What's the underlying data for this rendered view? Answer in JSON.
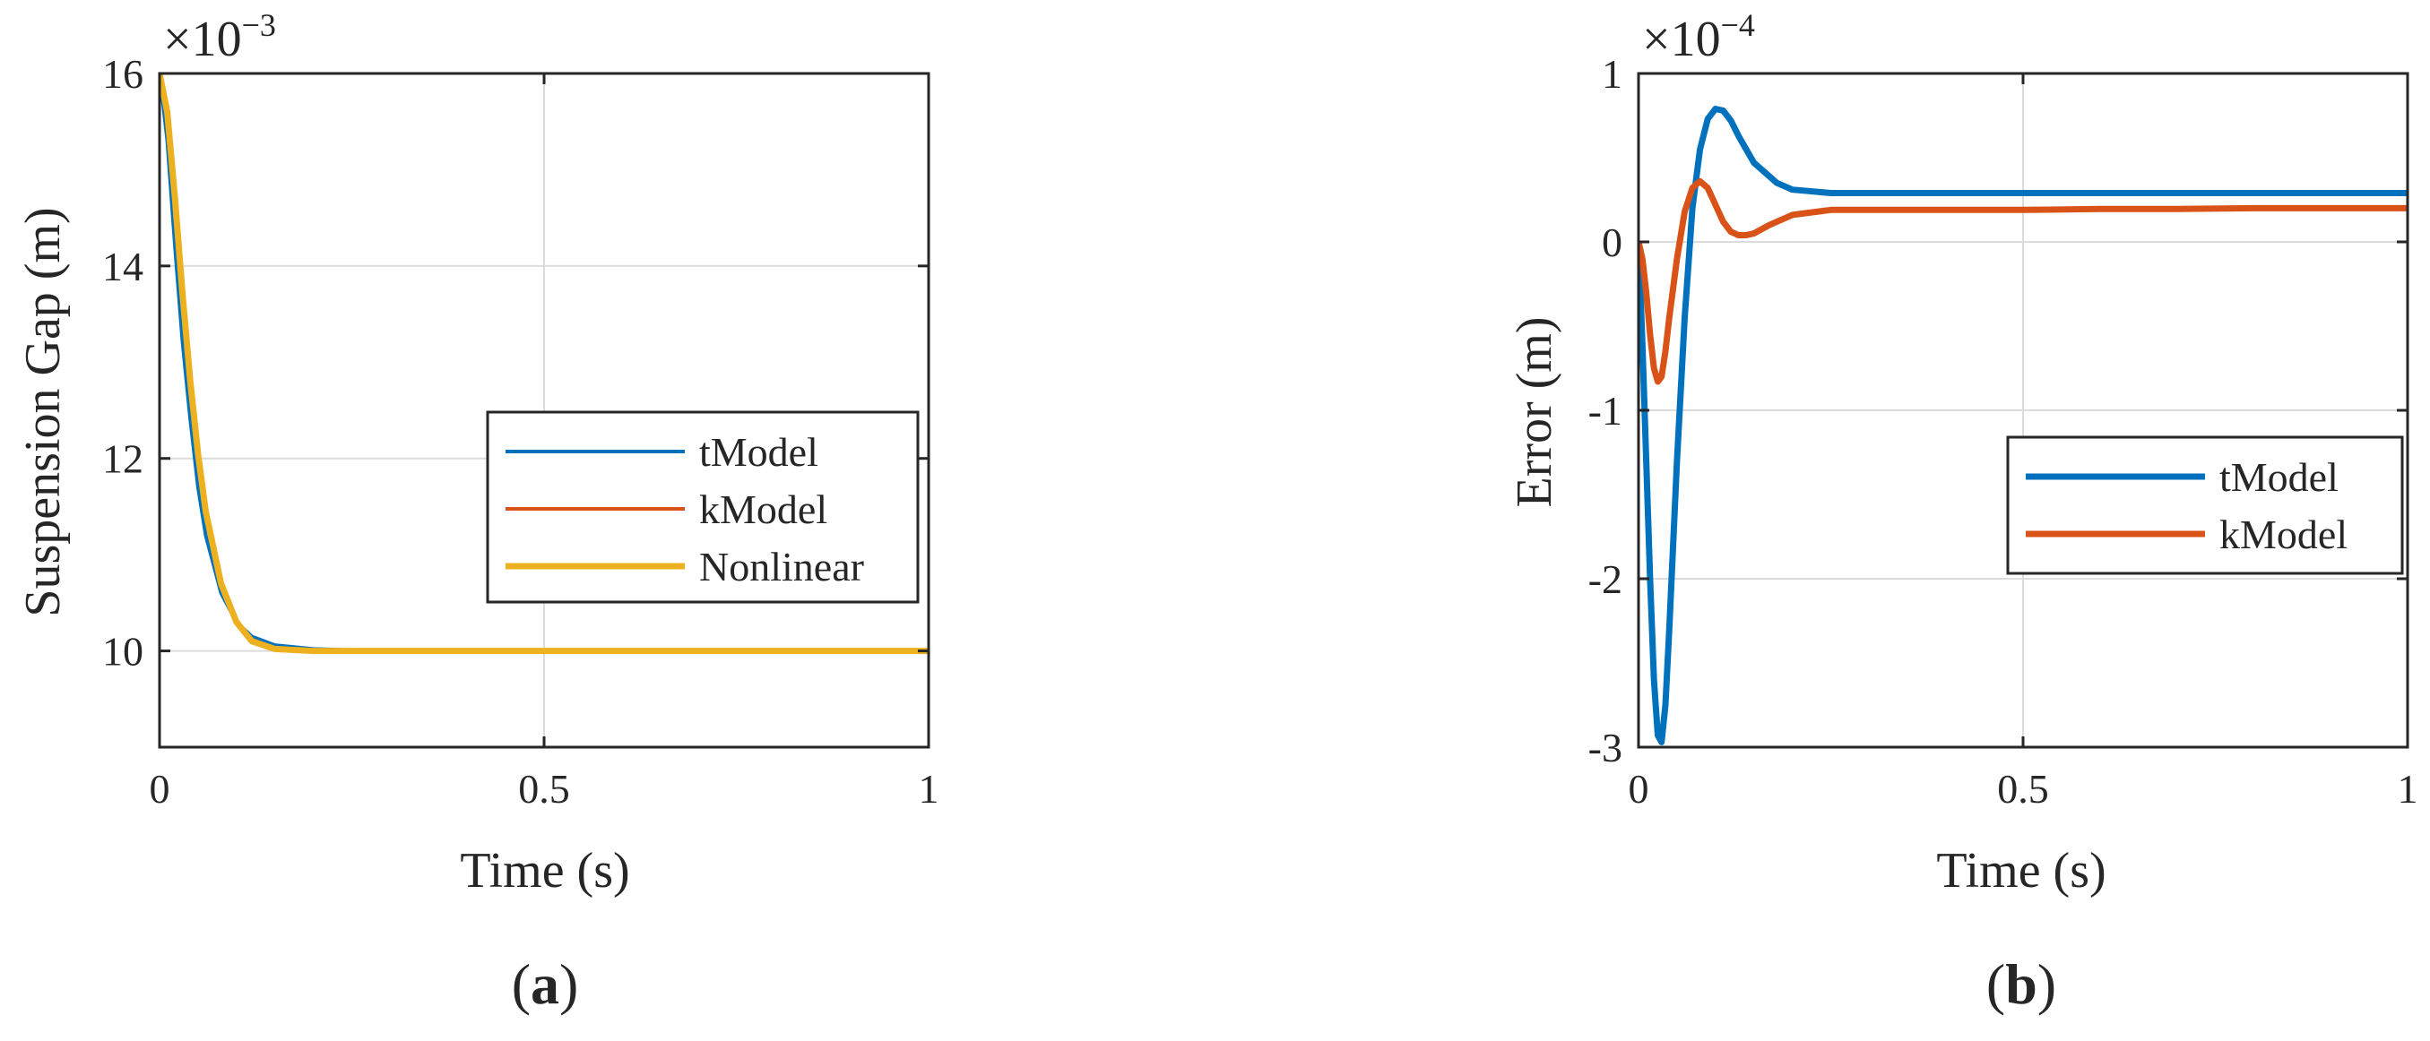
{
  "chart_data": [
    {
      "type": "line",
      "caption": "(a)",
      "caption_letter": "a",
      "xlabel": "Time (s)",
      "ylabel": "Suspension Gap (m)",
      "exponent": "×10",
      "exponent_power": "−3",
      "xlim": [
        0,
        1
      ],
      "ylim": [
        9,
        16
      ],
      "xticks": [
        "0",
        "0.5",
        "1"
      ],
      "yticks": [
        "10",
        "12",
        "14",
        "16"
      ],
      "grid": true,
      "legend_position": "center-right",
      "series": [
        {
          "name": "tModel",
          "color": "#0072BD",
          "x": [
            0,
            0.01,
            0.02,
            0.03,
            0.04,
            0.05,
            0.06,
            0.08,
            0.1,
            0.12,
            0.15,
            0.2,
            0.25,
            0.3,
            0.4,
            0.5,
            0.6,
            0.7,
            0.8,
            0.9,
            1.0
          ],
          "y": [
            16,
            15.3,
            14.2,
            13.2,
            12.4,
            11.7,
            11.2,
            10.6,
            10.3,
            10.15,
            10.06,
            10.02,
            10.01,
            10.01,
            10.01,
            10.01,
            10.01,
            10.01,
            10.01,
            10.01,
            10.01
          ]
        },
        {
          "name": "kModel",
          "color": "#D95319",
          "x": [
            0,
            0.01,
            0.02,
            0.03,
            0.04,
            0.05,
            0.06,
            0.08,
            0.1,
            0.12,
            0.15,
            0.2,
            0.25,
            0.3,
            0.4,
            0.5,
            0.6,
            0.7,
            0.8,
            0.9,
            1.0
          ],
          "y": [
            16,
            15.5,
            14.6,
            13.6,
            12.7,
            12.0,
            11.4,
            10.7,
            10.3,
            10.12,
            10.03,
            10.0,
            10.0,
            10.0,
            10.0,
            10.0,
            10.0,
            10.0,
            10.0,
            10.0,
            10.0
          ]
        },
        {
          "name": "Nonlinear",
          "color": "#EDB120",
          "x": [
            0,
            0.01,
            0.02,
            0.03,
            0.04,
            0.05,
            0.06,
            0.08,
            0.1,
            0.12,
            0.15,
            0.2,
            0.25,
            0.3,
            0.4,
            0.5,
            0.6,
            0.7,
            0.8,
            0.9,
            1.0
          ],
          "y": [
            16,
            15.6,
            14.7,
            13.7,
            12.8,
            12.05,
            11.45,
            10.7,
            10.3,
            10.1,
            10.02,
            10.0,
            10.0,
            10.0,
            10.0,
            10.0,
            10.0,
            10.0,
            10.0,
            10.0,
            10.0
          ]
        }
      ]
    },
    {
      "type": "line",
      "caption": "(b)",
      "caption_letter": "b",
      "xlabel": "Time (s)",
      "ylabel": "Error (m)",
      "exponent": "×10",
      "exponent_power": "−4",
      "xlim": [
        0,
        1
      ],
      "ylim": [
        -3,
        1
      ],
      "xticks": [
        "0",
        "0.5",
        "1"
      ],
      "yticks": [
        "-3",
        "-2",
        "-1",
        "0",
        "1"
      ],
      "grid": true,
      "legend_position": "center-right",
      "series": [
        {
          "name": "tModel",
          "color": "#0072BD",
          "x": [
            0,
            0.005,
            0.01,
            0.015,
            0.02,
            0.025,
            0.03,
            0.035,
            0.04,
            0.05,
            0.06,
            0.07,
            0.08,
            0.09,
            0.1,
            0.11,
            0.12,
            0.13,
            0.15,
            0.18,
            0.2,
            0.25,
            0.3,
            0.4,
            0.5,
            0.6,
            0.7,
            0.8,
            0.9,
            1.0
          ],
          "y": [
            0,
            -0.6,
            -1.3,
            -2.0,
            -2.6,
            -2.93,
            -2.97,
            -2.75,
            -2.3,
            -1.3,
            -0.45,
            0.2,
            0.55,
            0.73,
            0.79,
            0.78,
            0.72,
            0.63,
            0.47,
            0.35,
            0.31,
            0.29,
            0.29,
            0.29,
            0.29,
            0.29,
            0.29,
            0.29,
            0.29,
            0.29
          ]
        },
        {
          "name": "kModel",
          "color": "#D95319",
          "x": [
            0,
            0.005,
            0.01,
            0.015,
            0.02,
            0.025,
            0.03,
            0.035,
            0.04,
            0.05,
            0.06,
            0.07,
            0.08,
            0.09,
            0.1,
            0.11,
            0.12,
            0.13,
            0.14,
            0.15,
            0.17,
            0.2,
            0.25,
            0.3,
            0.4,
            0.5,
            0.6,
            0.7,
            0.8,
            0.9,
            1.0
          ],
          "y": [
            0,
            -0.1,
            -0.3,
            -0.55,
            -0.75,
            -0.83,
            -0.8,
            -0.65,
            -0.45,
            -0.1,
            0.18,
            0.32,
            0.36,
            0.32,
            0.22,
            0.12,
            0.06,
            0.04,
            0.04,
            0.05,
            0.1,
            0.16,
            0.19,
            0.19,
            0.19,
            0.19,
            0.195,
            0.195,
            0.2,
            0.2,
            0.2
          ]
        }
      ]
    }
  ]
}
